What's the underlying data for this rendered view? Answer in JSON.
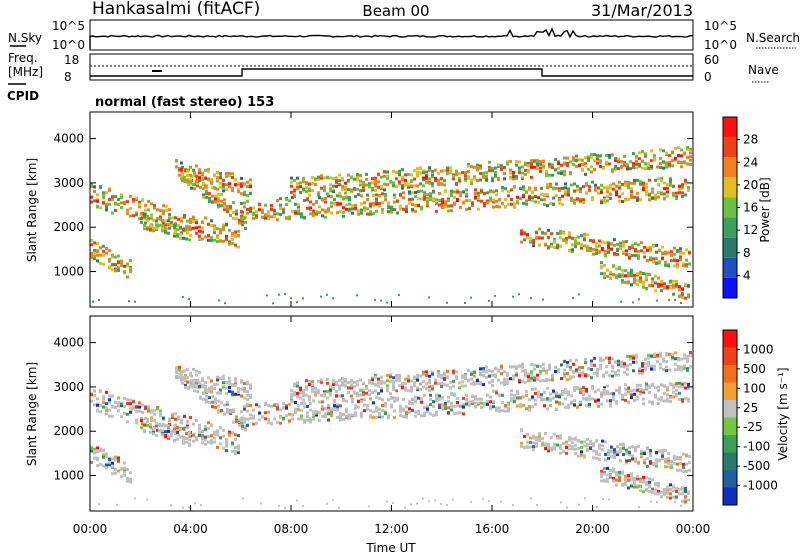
{
  "header": {
    "station": "Hankasalmi (fitACF)",
    "beam": "Beam 00",
    "date": "31/Mar/2013"
  },
  "noise_panel": {
    "left_label": "N.Sky",
    "right_label": "N.Search",
    "left_ticks": [
      "10^5",
      "10^0"
    ],
    "right_ticks": [
      "10^5",
      "10^0"
    ]
  },
  "freq_panel": {
    "left_label_1": "Freq.",
    "left_label_2": "[MHz]",
    "right_label": "Nave",
    "left_ticks": [
      "18",
      "8"
    ],
    "right_ticks": [
      "60",
      "0"
    ]
  },
  "cpid": {
    "label": "CPID",
    "value": "normal (fast stereo) 153"
  },
  "chart_data": [
    {
      "type": "heatmap",
      "name": "Power",
      "ylabel": "Slant Range [km]",
      "ylim": [
        200,
        4600
      ],
      "yticks": [
        "4000",
        "3000",
        "2000",
        "1000"
      ],
      "x": [
        "00:00",
        "04:00",
        "08:00",
        "12:00",
        "16:00",
        "20:00",
        "00:00"
      ],
      "colorbar": {
        "label": "Power [dB]",
        "ticks": [
          "28",
          "24",
          "20",
          "16",
          "12",
          "8",
          "4"
        ],
        "colors": [
          "#1010ff",
          "#2050c0",
          "#2a7a6a",
          "#3aa05a",
          "#6cc040",
          "#e0c020",
          "#f08020",
          "#f04018",
          "#ff1010"
        ]
      }
    },
    {
      "type": "heatmap",
      "name": "Velocity",
      "ylabel": "Slant Range [km]",
      "ylim": [
        200,
        4600
      ],
      "yticks": [
        "4000",
        "3000",
        "2000",
        "1000"
      ],
      "x": [
        "00:00",
        "04:00",
        "08:00",
        "12:00",
        "16:00",
        "20:00",
        "00:00"
      ],
      "xlabel": "Time UT",
      "colorbar": {
        "label": "Velocity [m s⁻¹]",
        "ticks": [
          "1000",
          "500",
          "100",
          "25",
          "-25",
          "-100",
          "-500",
          "-1000"
        ],
        "colors": [
          "#1030c0",
          "#2060a0",
          "#2a7a6a",
          "#3aa05a",
          "#70c840",
          "#c0c0c0",
          "#f0a030",
          "#f07020",
          "#f04018",
          "#ff1010"
        ]
      }
    }
  ]
}
